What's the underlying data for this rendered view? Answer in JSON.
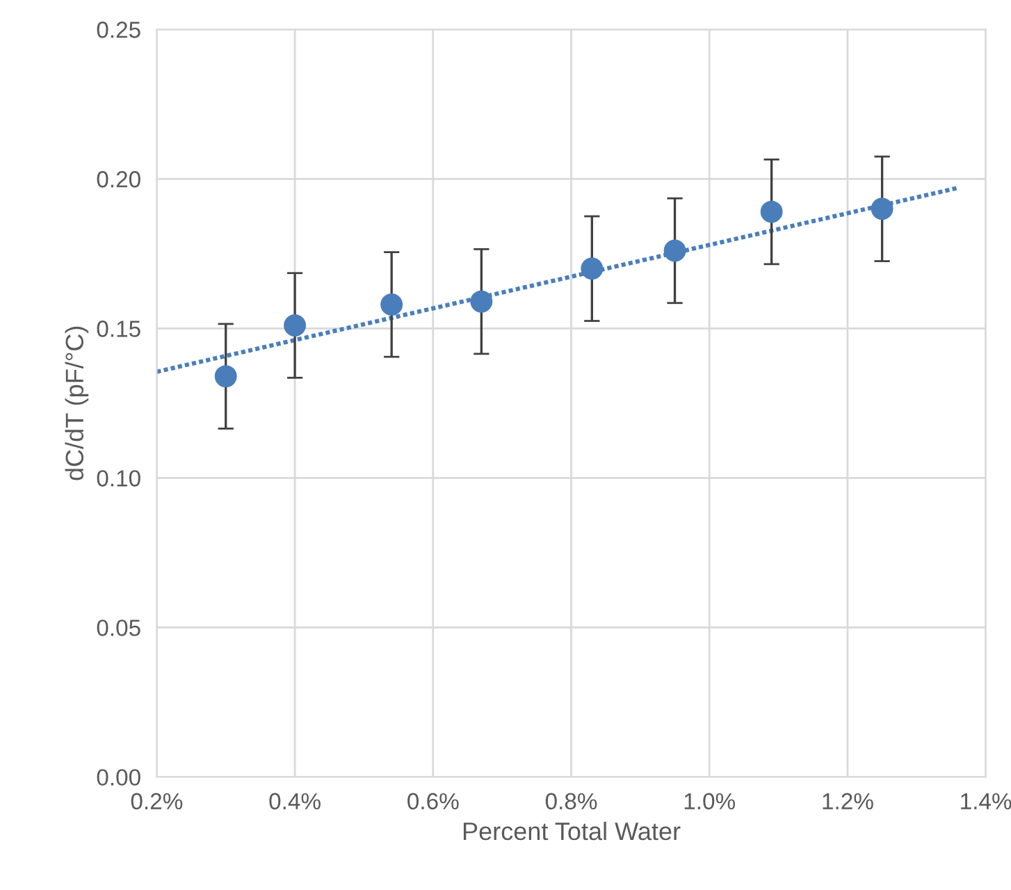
{
  "chart_data": {
    "type": "scatter",
    "xlabel": "Percent Total Water",
    "ylabel": "dC/dT (pF/°C)",
    "xlim": [
      0.2,
      1.4
    ],
    "ylim": [
      0,
      0.25
    ],
    "xticks": [
      {
        "value": 0.2,
        "label": "0.2%"
      },
      {
        "value": 0.4,
        "label": "0.4%"
      },
      {
        "value": 0.6,
        "label": "0.6%"
      },
      {
        "value": 0.8,
        "label": "0.8%"
      },
      {
        "value": 1.0,
        "label": "1.0%"
      },
      {
        "value": 1.2,
        "label": "1.2%"
      },
      {
        "value": 1.4,
        "label": "1.4%"
      }
    ],
    "yticks": [
      {
        "value": 0,
        "label": "0.00"
      },
      {
        "value": 0.05,
        "label": "0.05"
      },
      {
        "value": 0.1,
        "label": "0.10"
      },
      {
        "value": 0.15,
        "label": "0.15"
      },
      {
        "value": 0.2,
        "label": "0.20"
      },
      {
        "value": 0.25,
        "label": "0.25"
      }
    ],
    "grid": true,
    "marker": "circle",
    "series": [
      {
        "color": "#4a7ebb",
        "x": [
          0.3,
          0.4,
          0.54,
          0.67,
          0.83,
          0.95,
          1.09,
          1.25
        ],
        "values": [
          0.134,
          0.151,
          0.158,
          0.159,
          0.17,
          0.176,
          0.189,
          0.19
        ],
        "errors": [
          0.0175,
          0.0175,
          0.0175,
          0.0175,
          0.0175,
          0.0175,
          0.0175,
          0.0175
        ]
      },
      {
        "type": "line",
        "color": "#4a7ebb",
        "line_style": "dotted",
        "marker": "none",
        "x": [
          0.2,
          1.36
        ],
        "values": [
          0.1355,
          0.197
        ]
      }
    ]
  }
}
